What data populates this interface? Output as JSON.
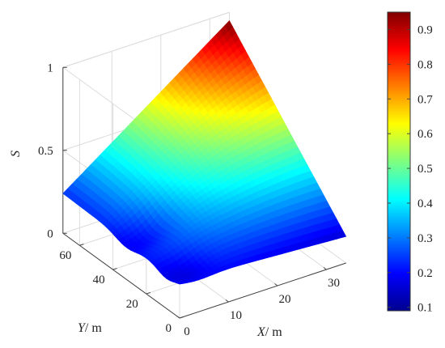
{
  "chart_data": {
    "type": "surface",
    "title": "",
    "xlabel_var": "X",
    "xlabel_unit": "/ m",
    "ylabel_var": "Y",
    "ylabel_unit": "/ m",
    "zlabel": "S",
    "xlim": [
      0,
      34
    ],
    "ylim": [
      0,
      70
    ],
    "zlim": [
      0,
      1
    ],
    "x_ticks": [
      "0",
      "10",
      "20",
      "30"
    ],
    "y_ticks": [
      "0",
      "20",
      "40",
      "60"
    ],
    "z_ticks": [
      "0",
      "0.5",
      "1"
    ],
    "colorbar": {
      "colormap": "jet",
      "range": [
        0.09,
        0.95
      ],
      "ticks": [
        "0.1",
        "0.2",
        "0.3",
        "0.4",
        "0.5",
        "0.6",
        "0.7",
        "0.8",
        "0.9"
      ]
    },
    "grid": true,
    "surface_corner_values": {
      "x0_y0": 0.22,
      "x0_y70": 0.24,
      "x34_y0": 0.16,
      "x34_y70": 0.95
    }
  }
}
